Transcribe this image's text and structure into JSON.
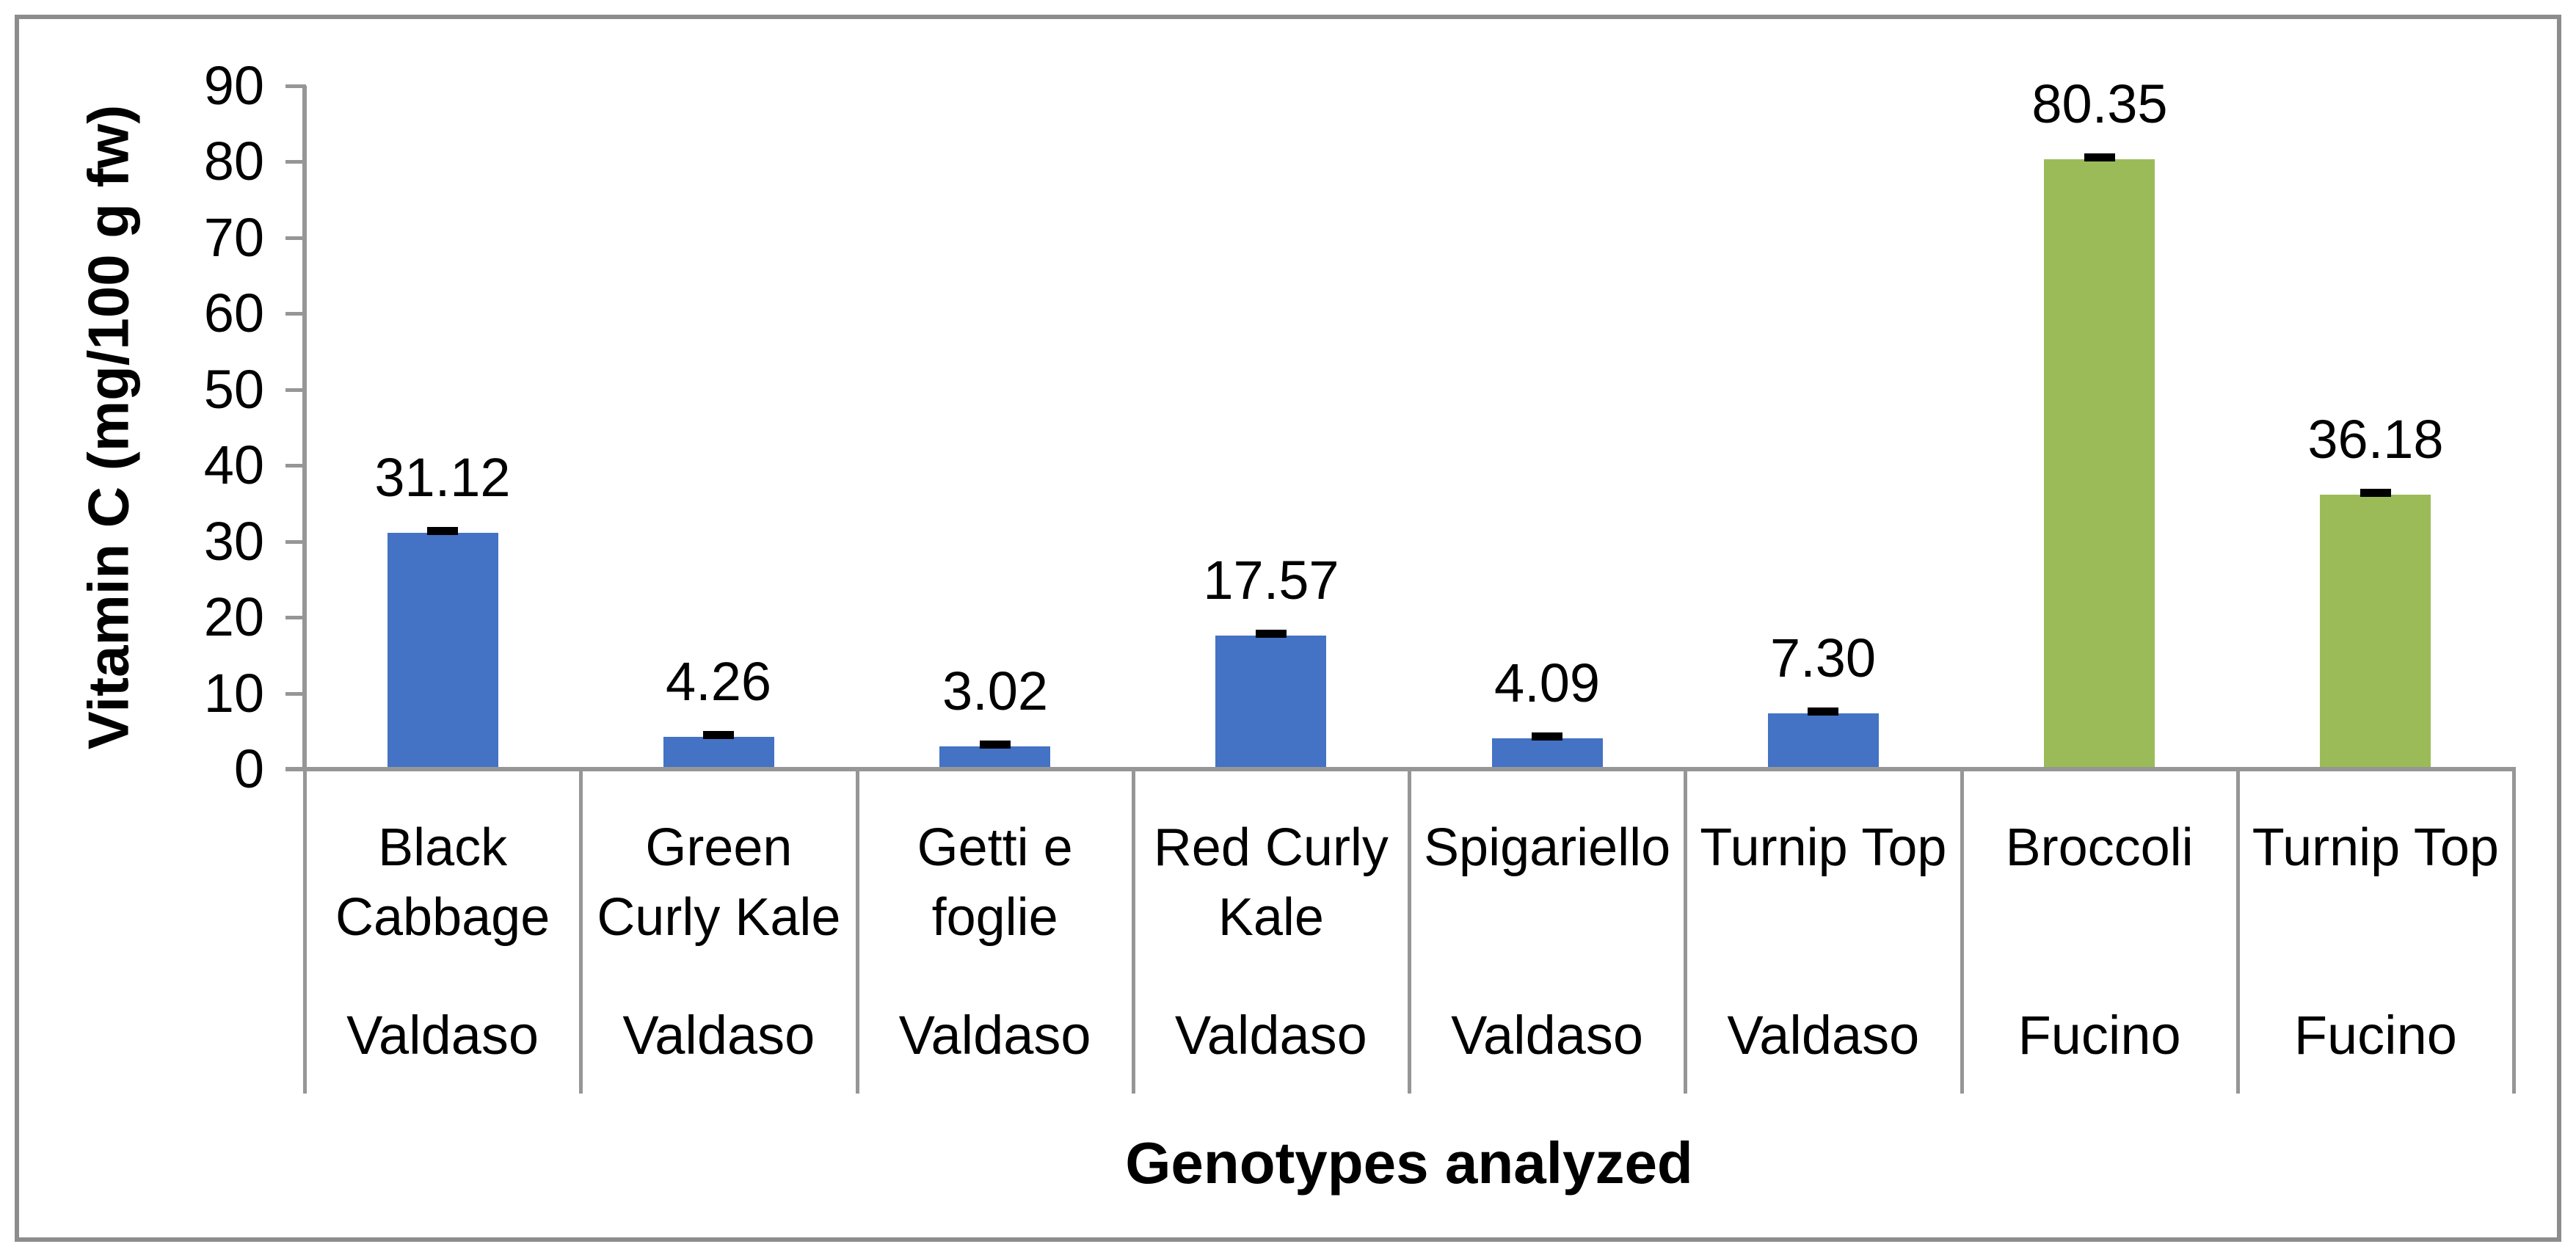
{
  "chart_data": {
    "type": "bar",
    "title": "",
    "xlabel": "Genotypes analyzed",
    "ylabel": "Vitamin C (mg/100 g fw)",
    "ylim": [
      0,
      90
    ],
    "ytick_step": 10,
    "ytick_labels": [
      "90",
      "80",
      "70",
      "60",
      "50",
      "40",
      "30",
      "20",
      "10",
      "0"
    ],
    "grid": false,
    "legend_position": "none",
    "error_bars": "small black caps at the top of every bar",
    "categories": [
      "Black Cabbage",
      "Green Curly Kale",
      "Getti e foglie",
      "Red Curly Kale",
      "Spigariello",
      "Turnip Top",
      "Broccoli",
      "Turnip Top"
    ],
    "group_labels": [
      "Valdaso",
      "Valdaso",
      "Valdaso",
      "Valdaso",
      "Valdaso",
      "Valdaso",
      "Fucino",
      "Fucino"
    ],
    "values": [
      31.12,
      4.26,
      3.02,
      17.57,
      4.09,
      7.3,
      80.35,
      36.18
    ],
    "points": [
      {
        "name_lines": "Black\nCabbage",
        "region": "Valdaso",
        "value": 31.12,
        "label": "31.12",
        "color": "#4472C4"
      },
      {
        "name_lines": "Green\nCurly Kale",
        "region": "Valdaso",
        "value": 4.26,
        "label": "4.26",
        "color": "#4472C4"
      },
      {
        "name_lines": "Getti e\nfoglie",
        "region": "Valdaso",
        "value": 3.02,
        "label": "3.02",
        "color": "#4472C4"
      },
      {
        "name_lines": "Red Curly\nKale",
        "region": "Valdaso",
        "value": 17.57,
        "label": "17.57",
        "color": "#4472C4"
      },
      {
        "name_lines": "Spigariello",
        "region": "Valdaso",
        "value": 4.09,
        "label": "4.09",
        "color": "#4472C4"
      },
      {
        "name_lines": "Turnip Top",
        "region": "Valdaso",
        "value": 7.3,
        "label": "7.30",
        "color": "#4472C4"
      },
      {
        "name_lines": "Broccoli",
        "region": "Fucino",
        "value": 80.35,
        "label": "80.35",
        "color": "#9BBB59"
      },
      {
        "name_lines": "Turnip Top",
        "region": "Fucino",
        "value": 36.18,
        "label": "36.18",
        "color": "#9BBB59"
      }
    ],
    "colors": {
      "valdaso_bar": "#4472C4",
      "fucino_bar": "#9BBB59",
      "axis_line": "#969696",
      "frame_border": "#8C8C8C",
      "error_bar": "#000000",
      "text": "#000000"
    }
  }
}
